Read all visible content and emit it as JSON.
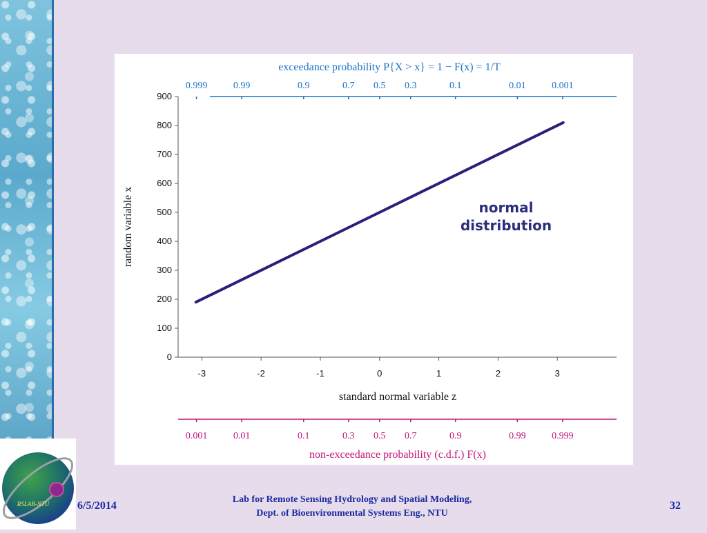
{
  "chart_data": {
    "type": "line",
    "xlabel": "standard normal variable z",
    "ylabel": "random variable x",
    "xlim": [
      -3.4,
      4.0
    ],
    "ylim": [
      0,
      900
    ],
    "x_ticks": [
      -3,
      -2,
      -1,
      0,
      1,
      2,
      3
    ],
    "y_ticks": [
      0,
      100,
      200,
      300,
      400,
      500,
      600,
      700,
      800,
      900
    ],
    "series": [
      {
        "x": [
          -3.1,
          3.1
        ],
        "y": [
          190,
          810
        ],
        "color": "#2b1f7a"
      }
    ],
    "annotation": {
      "line1": "normal",
      "line2": "distribution",
      "color": "#2b2f7a"
    },
    "top_axis": {
      "label": "exceedance probability P{X > x} = 1 − F(x) = 1/T",
      "ticks": [
        "0.999",
        "0.99",
        "0.9",
        "0.7",
        "0.5",
        "0.3",
        "0.1",
        "0.01",
        "0.001"
      ],
      "color": "#1a73c4"
    },
    "bottom_axis": {
      "label": "non-exceedance probability (c.d.f.) F(x)",
      "ticks": [
        "0.001",
        "0.01",
        "0.1",
        "0.3",
        "0.5",
        "0.7",
        "0.9",
        "0.99",
        "0.999"
      ],
      "color": "#c4147a"
    },
    "prob_values": [
      0.001,
      0.01,
      0.1,
      0.3,
      0.5,
      0.7,
      0.9,
      0.99,
      0.999
    ]
  },
  "footer": {
    "date": "6/5/2014",
    "lab_line1": "Lab for Remote Sensing Hydrology and Spatial Modeling,",
    "lab_line2": "Dept. of Bioenvironmental Systems Eng., NTU",
    "page": "32",
    "logo_text": "RSLAB-NTU"
  }
}
